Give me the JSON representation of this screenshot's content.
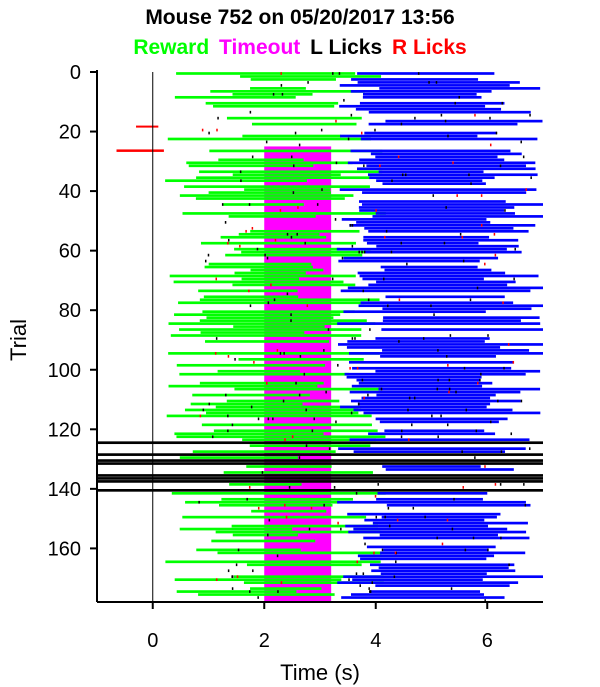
{
  "chart_data": {
    "type": "scatter",
    "title": "Mouse 752 on 05/20/2017 13:56",
    "legend": [
      {
        "label": "Reward",
        "color": "#00ff00"
      },
      {
        "label": "Timeout",
        "color": "#ff00ff"
      },
      {
        "label": "L Licks",
        "color": "#000000"
      },
      {
        "label": "R Licks",
        "color": "#ff0000"
      }
    ],
    "xlabel": "Time (s)",
    "ylabel": "Trial",
    "xlim": [
      -1,
      7
    ],
    "ylim": [
      178,
      0
    ],
    "xticks": [
      0,
      2,
      4,
      6
    ],
    "yticks": [
      0,
      20,
      40,
      60,
      80,
      100,
      120,
      140,
      160
    ],
    "extra_series_color": "#0000ff",
    "stimulus_onset": 0,
    "approx_bands": [
      {
        "name": "Timeout",
        "start": 2.0,
        "end": 3.2
      },
      {
        "name": "blue",
        "start": 3.2,
        "end": 7.0
      }
    ]
  }
}
